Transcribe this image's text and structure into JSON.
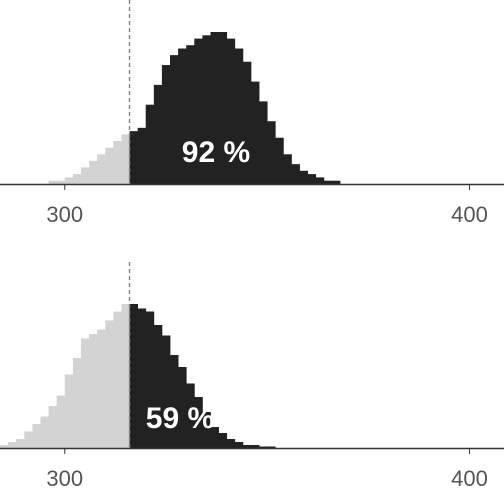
{
  "chart_data": [
    {
      "type": "histogram",
      "threshold": 316,
      "annotation": "92 %",
      "x_ticks": [
        {
          "value": 300,
          "label": "300"
        },
        {
          "value": 400,
          "label": "400"
        }
      ],
      "xlim": [
        284,
        410
      ],
      "bin_width": 2,
      "x_start": 284,
      "counts": [
        0,
        0,
        0,
        0,
        0,
        0,
        1,
        1,
        2,
        3,
        5,
        7,
        9,
        11,
        13,
        15,
        16,
        17,
        24,
        30,
        36,
        39,
        41,
        42,
        44,
        45,
        46,
        46,
        44,
        41,
        37,
        31,
        25,
        19,
        14,
        9,
        6,
        4,
        3,
        2,
        1,
        1,
        0,
        0,
        0,
        0,
        0,
        0,
        0,
        0,
        0,
        0,
        0,
        0,
        0,
        0,
        0,
        0,
        0,
        0,
        0,
        0,
        0
      ],
      "colors": {
        "below": "#d3d3d3",
        "above": "#222222",
        "threshold_line": "#888888",
        "axis": "#333333"
      }
    },
    {
      "type": "histogram",
      "threshold": 316,
      "annotation": "59 %",
      "x_ticks": [
        {
          "value": 300,
          "label": "300"
        },
        {
          "value": 400,
          "label": "400"
        }
      ],
      "xlim": [
        284,
        410
      ],
      "bin_width": 2,
      "x_start": 284,
      "counts": [
        2,
        4,
        6,
        11,
        16,
        21,
        28,
        35,
        49,
        60,
        73,
        76,
        79,
        85,
        91,
        96,
        96,
        93,
        91,
        82,
        75,
        62,
        54,
        43,
        34,
        24,
        14,
        10,
        6,
        4,
        2,
        2,
        1,
        1,
        0,
        0,
        0,
        0,
        0,
        0,
        0,
        0,
        0,
        0,
        0,
        0,
        0,
        0,
        0,
        0,
        0,
        0,
        0,
        0,
        0,
        0,
        0,
        0,
        0,
        0,
        0,
        0,
        0
      ],
      "colors": {
        "below": "#d3d3d3",
        "above": "#222222",
        "threshold_line": "#888888",
        "axis": "#333333"
      }
    }
  ]
}
